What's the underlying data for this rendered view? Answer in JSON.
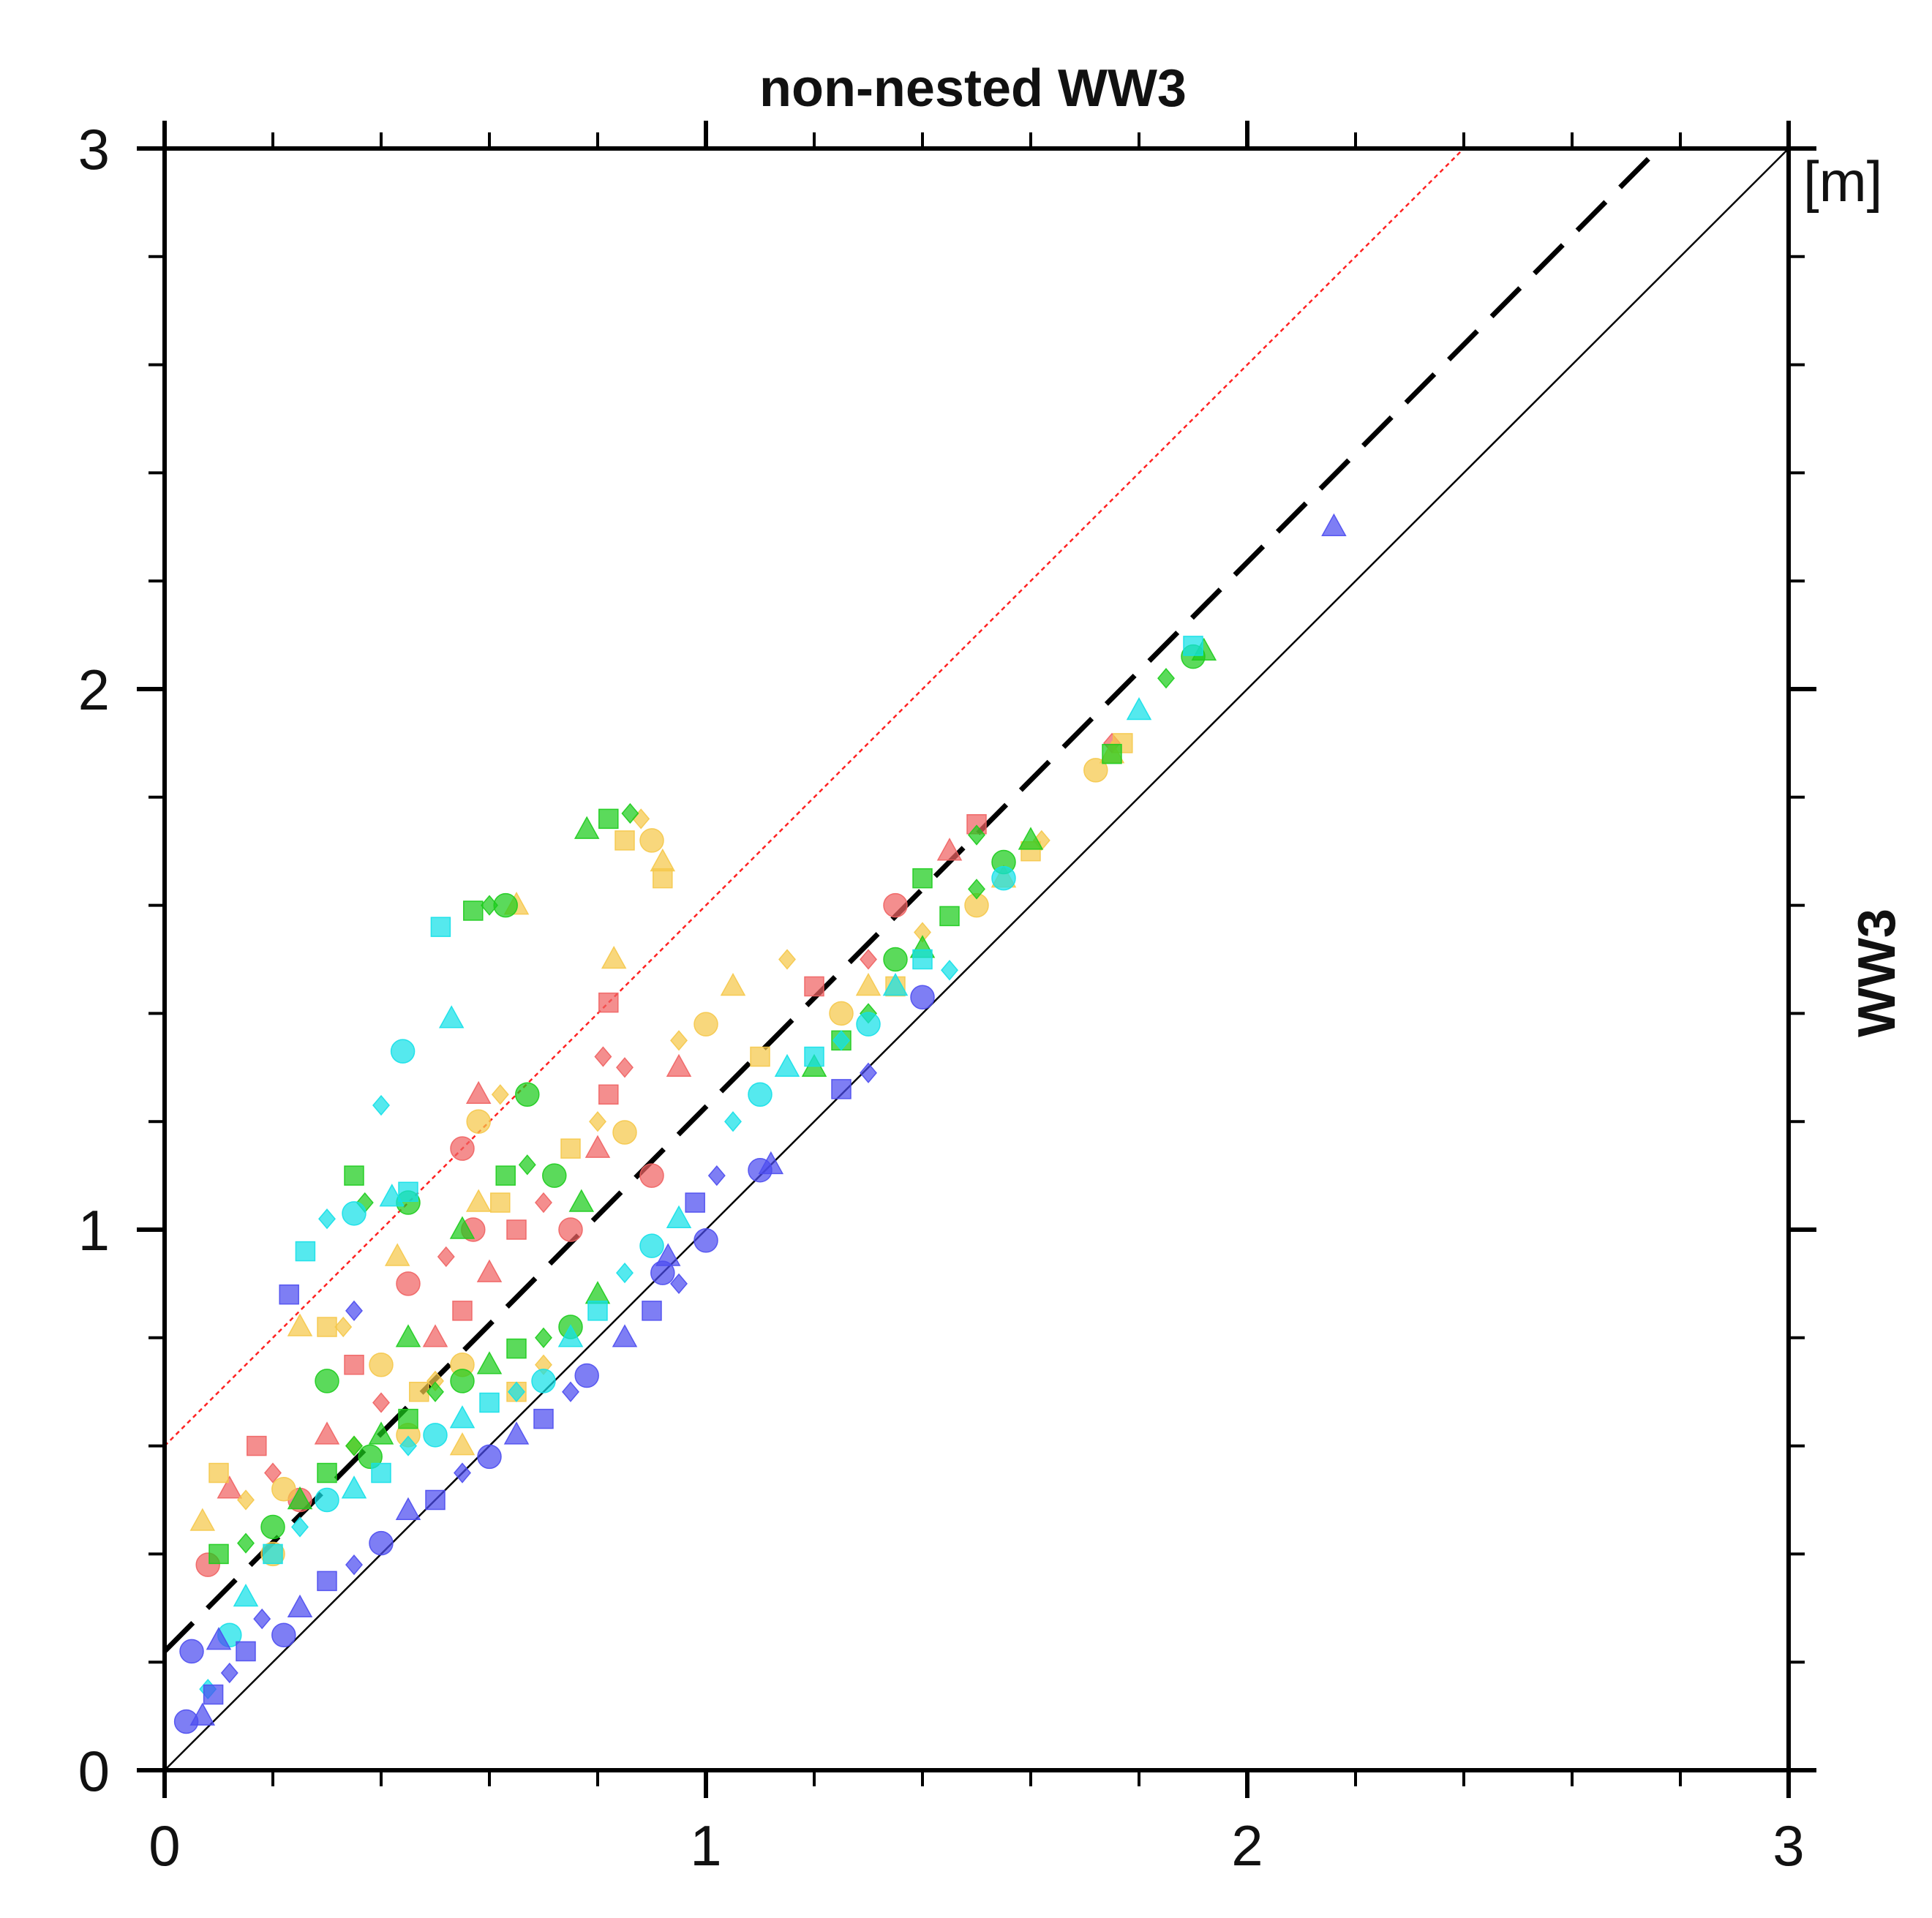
{
  "chart_data": {
    "type": "scatter",
    "title": "non-nested WW3",
    "xlabel": "",
    "ylabel": "WW3",
    "unit_label": "[m]",
    "xlim": [
      0,
      3
    ],
    "ylim": [
      0,
      3
    ],
    "x_ticks": [
      "0",
      "1",
      "2",
      "3"
    ],
    "y_ticks": [
      "0",
      "1",
      "2",
      "3"
    ],
    "colors": {
      "red": "#f06262",
      "yellow": "#f5c84a",
      "green": "#1ccc1c",
      "cyan": "#14e0e8",
      "blue": "#4c4cf0",
      "frame": "#000000",
      "red_line": "#ff2222"
    },
    "lines": [
      {
        "name": "1:1 line",
        "style": "solid",
        "color": "#000000",
        "points": [
          [
            0,
            0
          ],
          [
            3,
            3
          ]
        ]
      },
      {
        "name": "regression",
        "style": "dashed",
        "color": "#000000",
        "points": [
          [
            0,
            0.22
          ],
          [
            2.76,
            3
          ]
        ]
      },
      {
        "name": "upper bound",
        "style": "dotted",
        "color": "#ff2222",
        "points": [
          [
            0,
            0.6
          ],
          [
            2.4,
            3
          ]
        ]
      }
    ],
    "series": [
      {
        "name": "red",
        "color": "#f06262",
        "points": [
          [
            0.08,
            0.38
          ],
          [
            0.12,
            0.52
          ],
          [
            0.17,
            0.6
          ],
          [
            0.2,
            0.55
          ],
          [
            0.25,
            0.5
          ],
          [
            0.3,
            0.62
          ],
          [
            0.35,
            0.75
          ],
          [
            0.4,
            0.68
          ],
          [
            0.45,
            0.9
          ],
          [
            0.5,
            0.8
          ],
          [
            0.55,
            0.85
          ],
          [
            0.52,
            0.95
          ],
          [
            0.57,
            1.0
          ],
          [
            0.6,
            0.92
          ],
          [
            0.65,
            1.0
          ],
          [
            0.7,
            1.05
          ],
          [
            0.75,
            1.0
          ],
          [
            0.8,
            1.15
          ],
          [
            0.82,
            1.25
          ],
          [
            0.85,
            1.3
          ],
          [
            0.9,
            1.1
          ],
          [
            0.95,
            1.3
          ],
          [
            1.2,
            1.45
          ],
          [
            1.3,
            1.5
          ],
          [
            1.35,
            1.6
          ],
          [
            1.45,
            1.7
          ],
          [
            1.5,
            1.75
          ],
          [
            1.75,
            1.9
          ],
          [
            0.55,
            1.15
          ],
          [
            0.58,
            1.25
          ],
          [
            0.82,
            1.42
          ],
          [
            0.81,
            1.32
          ]
        ]
      },
      {
        "name": "yellow",
        "color": "#f5c84a",
        "points": [
          [
            0.07,
            0.46
          ],
          [
            0.1,
            0.55
          ],
          [
            0.15,
            0.5
          ],
          [
            0.22,
            0.52
          ],
          [
            0.25,
            0.82
          ],
          [
            0.3,
            0.82
          ],
          [
            0.33,
            0.82
          ],
          [
            0.4,
            0.75
          ],
          [
            0.43,
            0.95
          ],
          [
            0.47,
            0.7
          ],
          [
            0.5,
            0.72
          ],
          [
            0.55,
            0.75
          ],
          [
            0.58,
            1.05
          ],
          [
            0.62,
            1.05
          ],
          [
            0.62,
            1.25
          ],
          [
            0.58,
            1.2
          ],
          [
            0.65,
            1.6
          ],
          [
            0.75,
            1.15
          ],
          [
            0.8,
            1.2
          ],
          [
            0.85,
            1.18
          ],
          [
            0.83,
            1.5
          ],
          [
            0.85,
            1.72
          ],
          [
            0.88,
            1.76
          ],
          [
            0.9,
            1.72
          ],
          [
            0.92,
            1.68
          ],
          [
            0.92,
            1.65
          ],
          [
            0.95,
            1.35
          ],
          [
            1.0,
            1.38
          ],
          [
            1.05,
            1.45
          ],
          [
            1.1,
            1.32
          ],
          [
            1.15,
            1.5
          ],
          [
            1.25,
            1.4
          ],
          [
            1.3,
            1.45
          ],
          [
            1.35,
            1.45
          ],
          [
            1.4,
            1.55
          ],
          [
            1.5,
            1.6
          ],
          [
            1.55,
            1.65
          ],
          [
            1.6,
            1.7
          ],
          [
            1.62,
            1.72
          ],
          [
            1.72,
            1.85
          ],
          [
            1.75,
            1.88
          ],
          [
            1.77,
            1.9
          ],
          [
            0.35,
            0.6
          ],
          [
            0.45,
            0.62
          ],
          [
            0.55,
            0.6
          ],
          [
            0.65,
            0.7
          ],
          [
            0.7,
            0.75
          ],
          [
            0.2,
            0.4
          ]
        ]
      },
      {
        "name": "green",
        "color": "#1ccc1c",
        "points": [
          [
            0.1,
            0.4
          ],
          [
            0.15,
            0.42
          ],
          [
            0.2,
            0.45
          ],
          [
            0.25,
            0.5
          ],
          [
            0.3,
            0.55
          ],
          [
            0.35,
            0.6
          ],
          [
            0.38,
            0.58
          ],
          [
            0.4,
            0.62
          ],
          [
            0.45,
            0.65
          ],
          [
            0.5,
            0.7
          ],
          [
            0.55,
            0.72
          ],
          [
            0.6,
            0.75
          ],
          [
            0.65,
            0.78
          ],
          [
            0.7,
            0.8
          ],
          [
            0.75,
            0.82
          ],
          [
            0.8,
            0.88
          ],
          [
            0.35,
            1.1
          ],
          [
            0.37,
            1.05
          ],
          [
            0.45,
            1.05
          ],
          [
            0.55,
            1.0
          ],
          [
            0.63,
            1.1
          ],
          [
            0.67,
            1.12
          ],
          [
            0.72,
            1.1
          ],
          [
            0.77,
            1.05
          ],
          [
            0.57,
            1.59
          ],
          [
            0.6,
            1.6
          ],
          [
            0.63,
            1.6
          ],
          [
            0.78,
            1.74
          ],
          [
            0.82,
            1.76
          ],
          [
            0.86,
            1.77
          ],
          [
            0.67,
            1.25
          ],
          [
            1.2,
            1.3
          ],
          [
            1.25,
            1.35
          ],
          [
            1.3,
            1.4
          ],
          [
            1.35,
            1.5
          ],
          [
            1.4,
            1.52
          ],
          [
            1.45,
            1.58
          ],
          [
            1.5,
            1.63
          ],
          [
            1.55,
            1.68
          ],
          [
            1.6,
            1.72
          ],
          [
            1.75,
            1.88
          ],
          [
            1.85,
            2.02
          ],
          [
            1.9,
            2.06
          ],
          [
            1.92,
            2.07
          ],
          [
            1.4,
            1.65
          ],
          [
            1.5,
            1.73
          ],
          [
            0.3,
            0.72
          ],
          [
            0.45,
            0.8
          ]
        ]
      },
      {
        "name": "cyan",
        "color": "#14e0e8",
        "points": [
          [
            0.08,
            0.15
          ],
          [
            0.12,
            0.25
          ],
          [
            0.15,
            0.32
          ],
          [
            0.2,
            0.4
          ],
          [
            0.25,
            0.45
          ],
          [
            0.3,
            0.5
          ],
          [
            0.35,
            0.52
          ],
          [
            0.4,
            0.55
          ],
          [
            0.45,
            0.6
          ],
          [
            0.5,
            0.62
          ],
          [
            0.55,
            0.65
          ],
          [
            0.6,
            0.68
          ],
          [
            0.65,
            0.7
          ],
          [
            0.7,
            0.72
          ],
          [
            0.75,
            0.8
          ],
          [
            0.8,
            0.85
          ],
          [
            0.85,
            0.92
          ],
          [
            0.9,
            0.97
          ],
          [
            0.95,
            1.02
          ],
          [
            0.26,
            0.96
          ],
          [
            0.3,
            1.02
          ],
          [
            0.35,
            1.03
          ],
          [
            0.42,
            1.06
          ],
          [
            0.45,
            1.07
          ],
          [
            0.4,
            1.23
          ],
          [
            0.44,
            1.33
          ],
          [
            0.53,
            1.39
          ],
          [
            0.51,
            1.56
          ],
          [
            1.05,
            1.2
          ],
          [
            1.1,
            1.25
          ],
          [
            1.15,
            1.3
          ],
          [
            1.2,
            1.32
          ],
          [
            1.25,
            1.35
          ],
          [
            1.3,
            1.38
          ],
          [
            1.35,
            1.45
          ],
          [
            1.4,
            1.5
          ],
          [
            1.45,
            1.48
          ],
          [
            1.55,
            1.65
          ],
          [
            1.8,
            1.96
          ],
          [
            1.9,
            2.08
          ]
        ]
      },
      {
        "name": "blue",
        "color": "#4c4cf0",
        "points": [
          [
            0.04,
            0.09
          ],
          [
            0.07,
            0.1
          ],
          [
            0.09,
            0.14
          ],
          [
            0.12,
            0.18
          ],
          [
            0.05,
            0.22
          ],
          [
            0.1,
            0.24
          ],
          [
            0.15,
            0.22
          ],
          [
            0.18,
            0.28
          ],
          [
            0.22,
            0.25
          ],
          [
            0.25,
            0.3
          ],
          [
            0.3,
            0.35
          ],
          [
            0.35,
            0.38
          ],
          [
            0.4,
            0.42
          ],
          [
            0.45,
            0.48
          ],
          [
            0.5,
            0.5
          ],
          [
            0.55,
            0.55
          ],
          [
            0.6,
            0.58
          ],
          [
            0.65,
            0.62
          ],
          [
            0.7,
            0.65
          ],
          [
            0.75,
            0.7
          ],
          [
            0.78,
            0.73
          ],
          [
            0.85,
            0.8
          ],
          [
            0.9,
            0.85
          ],
          [
            0.95,
            0.9
          ],
          [
            1.0,
            0.98
          ],
          [
            0.93,
            0.95
          ],
          [
            0.98,
            1.05
          ],
          [
            1.02,
            1.1
          ],
          [
            1.1,
            1.11
          ],
          [
            1.12,
            1.12
          ],
          [
            1.25,
            1.26
          ],
          [
            1.3,
            1.29
          ],
          [
            1.4,
            1.43
          ],
          [
            2.16,
            2.3
          ],
          [
            0.23,
            0.88
          ],
          [
            0.35,
            0.85
          ],
          [
            0.92,
            0.92
          ]
        ]
      }
    ]
  }
}
